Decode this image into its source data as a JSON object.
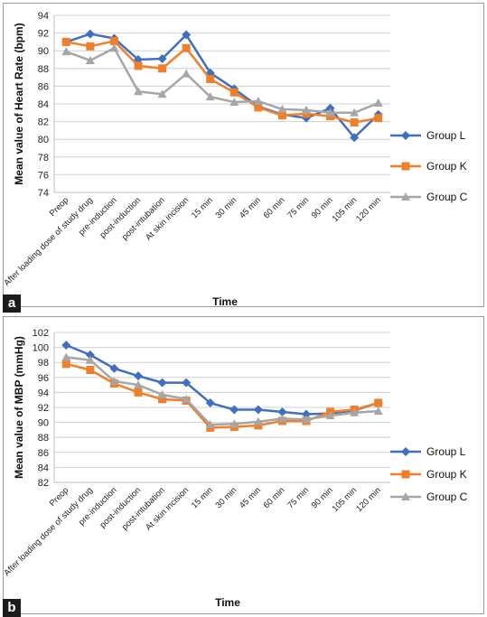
{
  "figure": {
    "panels": [
      {
        "letter": "a"
      },
      {
        "letter": "b"
      }
    ]
  },
  "chart_data": [
    {
      "type": "line",
      "categories": [
        "Preop",
        "After loading dose of study drug",
        "pre-induction",
        "post-induction",
        "post-intubation",
        "At skin incision",
        "15 min",
        "30 min",
        "45 min",
        "60 min",
        "75 min",
        "90 min",
        "105 min",
        "120 min"
      ],
      "series": [
        {
          "name": "Group L",
          "color": "#3F6FBF",
          "marker": "diamond",
          "values": [
            91.0,
            91.9,
            91.4,
            89.0,
            89.1,
            91.8,
            87.5,
            85.7,
            83.7,
            82.8,
            82.4,
            83.5,
            80.2,
            82.8
          ]
        },
        {
          "name": "Group K",
          "color": "#F07F2A",
          "marker": "square",
          "values": [
            91.0,
            90.5,
            91.1,
            88.3,
            88.0,
            90.3,
            86.8,
            85.3,
            83.6,
            82.7,
            82.9,
            82.6,
            81.9,
            82.4
          ]
        },
        {
          "name": "Group C",
          "color": "#A6A6A6",
          "marker": "triangle",
          "values": [
            89.9,
            88.9,
            90.3,
            85.4,
            85.1,
            87.4,
            84.8,
            84.2,
            84.3,
            83.4,
            83.3,
            83.0,
            83.0,
            84.1
          ]
        }
      ],
      "ylabel": "Mean value of Heart Rate (bpm)",
      "xlabel": "Time",
      "ylim": [
        74,
        94
      ],
      "yticks": [
        74,
        76,
        78,
        80,
        82,
        84,
        86,
        88,
        90,
        92,
        94
      ],
      "grid": true,
      "legend": "right"
    },
    {
      "type": "line",
      "categories": [
        "Preop",
        "After loading dose of study drug",
        "pre-induction",
        "post-induction",
        "post-intubation",
        "At skin incision",
        "15 min",
        "30 min",
        "45 min",
        "60 min",
        "75 min",
        "90 min",
        "105 min",
        "120 min"
      ],
      "series": [
        {
          "name": "Group L",
          "color": "#3F6FBF",
          "marker": "diamond",
          "values": [
            100.3,
            99.0,
            97.2,
            96.2,
            95.3,
            95.3,
            92.6,
            91.7,
            91.7,
            91.4,
            91.1,
            91.2,
            91.6,
            92.6
          ]
        },
        {
          "name": "Group K",
          "color": "#F07F2A",
          "marker": "square",
          "values": [
            97.8,
            97.0,
            95.2,
            94.0,
            93.1,
            92.9,
            89.3,
            89.4,
            89.6,
            90.2,
            90.2,
            91.4,
            91.7,
            92.6
          ]
        },
        {
          "name": "Group C",
          "color": "#A6A6A6",
          "marker": "triangle",
          "values": [
            98.7,
            98.3,
            95.5,
            95.0,
            93.7,
            93.1,
            89.7,
            89.8,
            90.1,
            90.5,
            90.4,
            90.9,
            91.3,
            91.5
          ]
        }
      ],
      "ylabel": "Mean value of MBP (mmHg)",
      "xlabel": "Time",
      "ylim": [
        82,
        102
      ],
      "yticks": [
        82,
        84,
        86,
        88,
        90,
        92,
        94,
        96,
        98,
        100,
        102
      ],
      "grid": true,
      "legend": "right"
    }
  ]
}
